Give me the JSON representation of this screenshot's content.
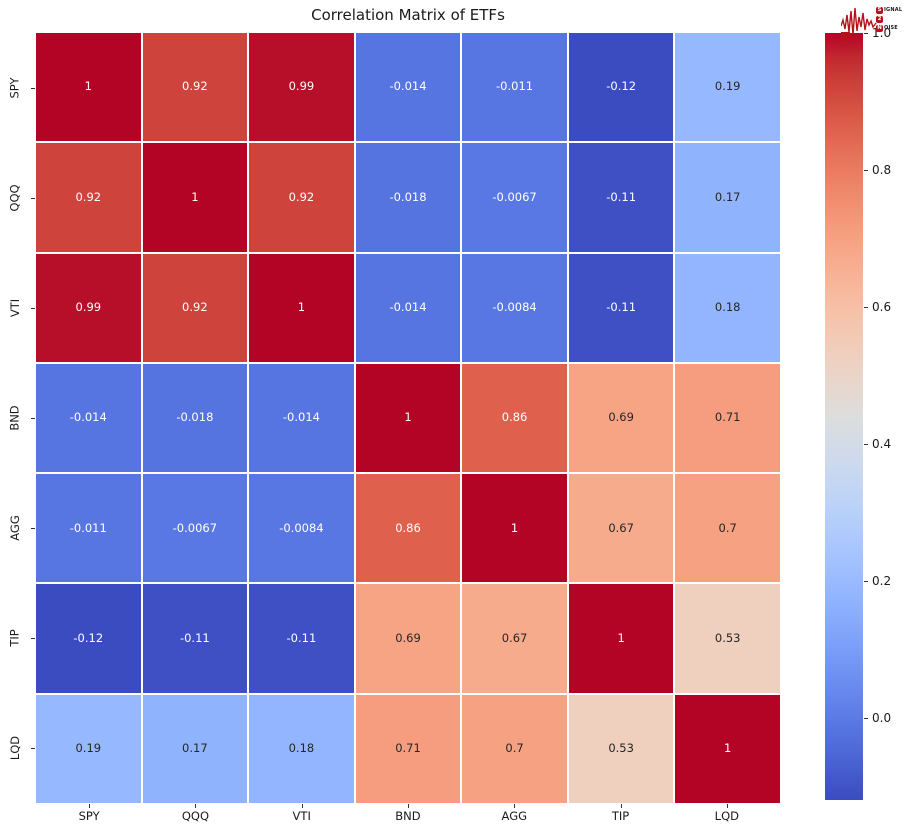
{
  "title": "Correlation Matrix of ETFs",
  "logo": {
    "badge1": "S",
    "word1": "IGNAL",
    "badge2": "2",
    "badge3": "N",
    "word3": "OISE",
    "brand_color": "#b5121b"
  },
  "chart_data": {
    "type": "heatmap",
    "title": "Correlation Matrix of ETFs",
    "categories": [
      "SPY",
      "QQQ",
      "VTI",
      "BND",
      "AGG",
      "TIP",
      "LQD"
    ],
    "matrix_display": [
      [
        "1",
        "0.92",
        "0.99",
        "-0.014",
        "-0.011",
        "-0.12",
        "0.19"
      ],
      [
        "0.92",
        "1",
        "0.92",
        "-0.018",
        "-0.0067",
        "-0.11",
        "0.17"
      ],
      [
        "0.99",
        "0.92",
        "1",
        "-0.014",
        "-0.0084",
        "-0.11",
        "0.18"
      ],
      [
        "-0.014",
        "-0.018",
        "-0.014",
        "1",
        "0.86",
        "0.69",
        "0.71"
      ],
      [
        "-0.011",
        "-0.0067",
        "-0.0084",
        "0.86",
        "1",
        "0.67",
        "0.7"
      ],
      [
        "-0.12",
        "-0.11",
        "-0.11",
        "0.69",
        "0.67",
        "1",
        "0.53"
      ],
      [
        "0.19",
        "0.17",
        "0.18",
        "0.71",
        "0.7",
        "0.53",
        "1"
      ]
    ],
    "colormap": "coolwarm",
    "vmin": -0.12,
    "vmax": 1.0,
    "colorbar_ticks": [
      "1.0",
      "0.8",
      "0.6",
      "0.4",
      "0.2",
      "0.0"
    ],
    "annotation_color_dark": "#262626",
    "annotation_color_light": "#ffffff",
    "grid_line_color": "#ffffff",
    "colormap_stops_rgb": [
      [
        59,
        76,
        192
      ],
      [
        68,
        90,
        204
      ],
      [
        77,
        104,
        215
      ],
      [
        87,
        117,
        225
      ],
      [
        98,
        130,
        234
      ],
      [
        108,
        142,
        241
      ],
      [
        119,
        154,
        247
      ],
      [
        130,
        165,
        251
      ],
      [
        141,
        176,
        254
      ],
      [
        152,
        185,
        255
      ],
      [
        163,
        194,
        255
      ],
      [
        174,
        201,
        253
      ],
      [
        184,
        208,
        249
      ],
      [
        194,
        213,
        244
      ],
      [
        204,
        217,
        238
      ],
      [
        213,
        219,
        230
      ],
      [
        221,
        221,
        221
      ],
      [
        229,
        216,
        209
      ],
      [
        236,
        211,
        197
      ],
      [
        241,
        204,
        185
      ],
      [
        245,
        196,
        173
      ],
      [
        247,
        187,
        160
      ],
      [
        247,
        177,
        148
      ],
      [
        247,
        166,
        135
      ],
      [
        244,
        154,
        123
      ],
      [
        241,
        141,
        111
      ],
      [
        236,
        127,
        99
      ],
      [
        229,
        112,
        88
      ],
      [
        222,
        96,
        77
      ],
      [
        213,
        80,
        66
      ],
      [
        203,
        62,
        56
      ],
      [
        192,
        40,
        47
      ],
      [
        180,
        4,
        38
      ]
    ]
  }
}
